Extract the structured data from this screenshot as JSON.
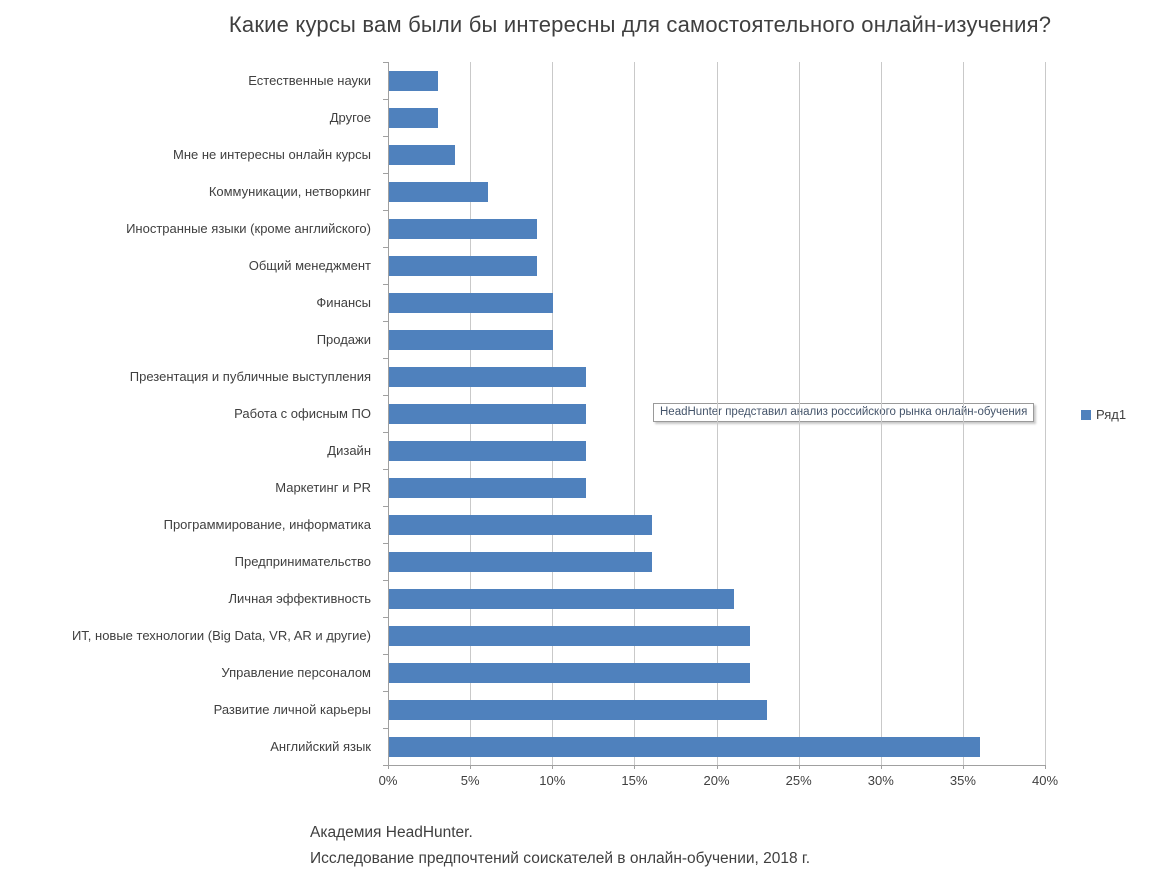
{
  "chart_data": {
    "type": "bar",
    "orientation": "horizontal",
    "title": "Какие курсы вам были бы интересны для самостоятельного онлайн-изучения?",
    "series_name": "Ряд1",
    "categories": [
      "Естественные науки",
      "Другое",
      "Мне не интересны онлайн курсы",
      "Коммуникации, нетворкинг",
      "Иностранные языки (кроме английского)",
      "Общий менеджмент",
      "Финансы",
      "Продажи",
      "Презентация и публичные выступления",
      "Работа с офисным ПО",
      "Дизайн",
      "Маркетинг и PR",
      "Программирование, информатика",
      "Предпринимательство",
      "Личная эффективность",
      "ИТ, новые технологии (Big Data, VR, AR и другие)",
      "Управление персоналом",
      "Развитие личной карьеры",
      "Английский язык"
    ],
    "values": [
      3,
      3,
      4,
      6,
      9,
      9,
      10,
      10,
      12,
      12,
      12,
      12,
      16,
      16,
      21,
      22,
      22,
      23,
      36
    ],
    "unit": "%",
    "xlim": [
      0,
      40
    ],
    "x_tick_values": [
      0,
      5,
      10,
      15,
      20,
      25,
      30,
      35,
      40
    ],
    "x_tick_labels": [
      "0%",
      "5%",
      "10%",
      "15%",
      "20%",
      "25%",
      "30%",
      "35%",
      "40%"
    ],
    "grid": true,
    "legend_position": "right",
    "bar_color": "#4f81bd",
    "annotation": "HeadHunter представил анализ российского рынка онлайн-обучения"
  },
  "footer": {
    "line1": "Академия HeadHunter.",
    "line2": "Исследование предпочтений соискателей в онлайн-обучении, 2018 г."
  },
  "colors": {
    "bar": "#4f81bd",
    "gridline": "#c9c9c9",
    "axis": "#a0a0a0",
    "text": "#404040",
    "annotation_text": "#44546a"
  }
}
